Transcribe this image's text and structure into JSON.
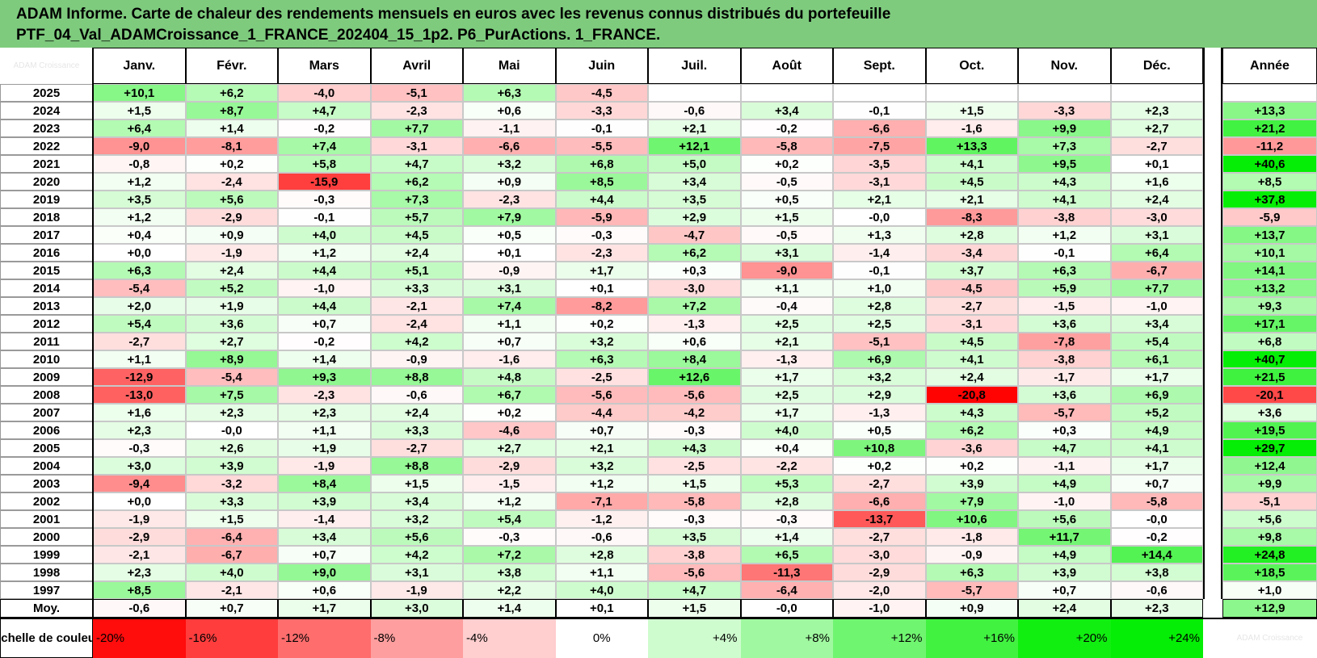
{
  "title_lines": [
    "ADAM Informe. Carte de chaleur des rendements mensuels en euros avec les revenus connus distribués du portefeuille",
    "PTF_04_Val_ADAMCroissance_1_FRANCE_202404_15_1p2. P6_PurActions. 1_FRANCE."
  ],
  "corner_watermark": "ADAM Croissance",
  "year_label": "Année",
  "average_label": "Moy.",
  "legend_label": "Echelle de couleur",
  "legend_ghost": "ADAM Croissance",
  "colors": {
    "title_bg": "#7ecb7e",
    "negative": "#ff0000",
    "positive": "#00ee00",
    "neutral": "#ffffff"
  },
  "chart_data": {
    "type": "heatmap",
    "title": "ADAM Informe. Carte de chaleur des rendements mensuels en euros avec les revenus connus distribués du portefeuille PTF_04_Val_ADAMCroissance_1_FRANCE_202404_15_1p2. P6_PurActions. 1_FRANCE.",
    "columns": [
      "Janv.",
      "Févr.",
      "Mars",
      "Avril",
      "Mai",
      "Juin",
      "Juil.",
      "Août",
      "Sept.",
      "Oct.",
      "Nov.",
      "Déc."
    ],
    "rows": [
      {
        "year": "2025",
        "values": [
          "+10,1",
          "+6,2",
          "-4,0",
          "-5,1",
          "+6,3",
          "-4,5",
          "",
          "",
          "",
          "",
          "",
          ""
        ],
        "annual": ""
      },
      {
        "year": "2024",
        "values": [
          "+1,5",
          "+8,7",
          "+4,7",
          "-2,3",
          "+0,6",
          "-3,3",
          "-0,6",
          "+3,4",
          "-0,1",
          "+1,5",
          "-3,3",
          "+2,3"
        ],
        "annual": "+13,3"
      },
      {
        "year": "2023",
        "values": [
          "+6,4",
          "+1,4",
          "-0,2",
          "+7,7",
          "-1,1",
          "-0,1",
          "+2,1",
          "-0,2",
          "-6,6",
          "-1,6",
          "+9,9",
          "+2,7"
        ],
        "annual": "+21,2"
      },
      {
        "year": "2022",
        "values": [
          "-9,0",
          "-8,1",
          "+7,4",
          "-3,1",
          "-6,6",
          "-5,5",
          "+12,1",
          "-5,8",
          "-7,5",
          "+13,3",
          "+7,3",
          "-2,7"
        ],
        "annual": "-11,2"
      },
      {
        "year": "2021",
        "values": [
          "-0,8",
          "+0,2",
          "+5,8",
          "+4,7",
          "+3,2",
          "+6,8",
          "+5,0",
          "+0,2",
          "-3,5",
          "+4,1",
          "+9,5",
          "+0,1"
        ],
        "annual": "+40,6"
      },
      {
        "year": "2020",
        "values": [
          "+1,2",
          "-2,4",
          "-15,9",
          "+6,2",
          "+0,9",
          "+8,5",
          "+3,4",
          "-0,5",
          "-3,1",
          "+4,5",
          "+4,3",
          "+1,6"
        ],
        "annual": "+8,5"
      },
      {
        "year": "2019",
        "values": [
          "+3,5",
          "+5,6",
          "-0,3",
          "+7,3",
          "-2,3",
          "+4,4",
          "+3,5",
          "+0,5",
          "+2,1",
          "+2,1",
          "+4,1",
          "+2,4"
        ],
        "annual": "+37,8"
      },
      {
        "year": "2018",
        "values": [
          "+1,2",
          "-2,9",
          "-0,1",
          "+5,7",
          "+7,9",
          "-5,9",
          "+2,9",
          "+1,5",
          "-0,0",
          "-8,3",
          "-3,8",
          "-3,0"
        ],
        "annual": "-5,9"
      },
      {
        "year": "2017",
        "values": [
          "+0,4",
          "+0,9",
          "+4,0",
          "+4,5",
          "+0,5",
          "-0,3",
          "-4,7",
          "-0,5",
          "+1,3",
          "+2,8",
          "+1,2",
          "+3,1"
        ],
        "annual": "+13,7"
      },
      {
        "year": "2016",
        "values": [
          "+0,0",
          "-1,9",
          "+1,2",
          "+2,4",
          "+0,1",
          "-2,3",
          "+6,2",
          "+3,1",
          "-1,4",
          "-3,4",
          "-0,1",
          "+6,4"
        ],
        "annual": "+10,1"
      },
      {
        "year": "2015",
        "values": [
          "+6,3",
          "+2,4",
          "+4,4",
          "+5,1",
          "-0,9",
          "+1,7",
          "+0,3",
          "-9,0",
          "-0,1",
          "+3,7",
          "+6,3",
          "-6,7"
        ],
        "annual": "+14,1"
      },
      {
        "year": "2014",
        "values": [
          "-5,4",
          "+5,2",
          "-1,0",
          "+3,3",
          "+3,1",
          "+0,1",
          "-3,0",
          "+1,1",
          "+1,0",
          "-4,5",
          "+5,9",
          "+7,7"
        ],
        "annual": "+13,2"
      },
      {
        "year": "2013",
        "values": [
          "+2,0",
          "+1,9",
          "+4,4",
          "-2,1",
          "+7,4",
          "-8,2",
          "+7,2",
          "-0,4",
          "+2,8",
          "-2,7",
          "-1,5",
          "-1,0"
        ],
        "annual": "+9,3"
      },
      {
        "year": "2012",
        "values": [
          "+5,4",
          "+3,6",
          "+0,7",
          "-2,4",
          "+1,1",
          "+0,2",
          "-1,3",
          "+2,5",
          "+2,5",
          "-3,1",
          "+3,6",
          "+3,4"
        ],
        "annual": "+17,1"
      },
      {
        "year": "2011",
        "values": [
          "-2,7",
          "+2,7",
          "-0,2",
          "+4,2",
          "+0,7",
          "+3,2",
          "+0,6",
          "+2,1",
          "-5,1",
          "+4,5",
          "-7,8",
          "+5,4"
        ],
        "annual": "+6,8"
      },
      {
        "year": "2010",
        "values": [
          "+1,1",
          "+8,9",
          "+1,4",
          "-0,9",
          "-1,6",
          "+6,3",
          "+8,4",
          "-1,3",
          "+6,9",
          "+4,1",
          "-3,8",
          "+6,1"
        ],
        "annual": "+40,7"
      },
      {
        "year": "2009",
        "values": [
          "-12,9",
          "-5,4",
          "+9,3",
          "+8,8",
          "+4,8",
          "-2,5",
          "+12,6",
          "+1,7",
          "+3,2",
          "+2,4",
          "-1,7",
          "+1,7"
        ],
        "annual": "+21,5"
      },
      {
        "year": "2008",
        "values": [
          "-13,0",
          "+7,5",
          "-2,3",
          "-0,6",
          "+6,7",
          "-5,6",
          "-5,6",
          "+2,5",
          "+2,9",
          "-20,8",
          "+3,6",
          "+6,9"
        ],
        "annual": "-20,1"
      },
      {
        "year": "2007",
        "values": [
          "+1,6",
          "+2,3",
          "+2,3",
          "+2,4",
          "+0,2",
          "-4,4",
          "-4,2",
          "+1,7",
          "-1,3",
          "+4,3",
          "-5,7",
          "+5,2"
        ],
        "annual": "+3,6"
      },
      {
        "year": "2006",
        "values": [
          "+2,3",
          "-0,0",
          "+1,1",
          "+3,3",
          "-4,6",
          "+0,7",
          "-0,3",
          "+4,0",
          "+0,5",
          "+6,2",
          "+0,3",
          "+4,9"
        ],
        "annual": "+19,5"
      },
      {
        "year": "2005",
        "values": [
          "-0,3",
          "+2,6",
          "+1,9",
          "-2,7",
          "+2,7",
          "+2,1",
          "+4,3",
          "+0,4",
          "+10,8",
          "-3,6",
          "+4,7",
          "+4,1"
        ],
        "annual": "+29,7"
      },
      {
        "year": "2004",
        "values": [
          "+3,0",
          "+3,9",
          "-1,9",
          "+8,8",
          "-2,9",
          "+3,2",
          "-2,5",
          "-2,2",
          "+0,2",
          "+0,2",
          "-1,1",
          "+1,7"
        ],
        "annual": "+12,4"
      },
      {
        "year": "2003",
        "values": [
          "-9,4",
          "-3,2",
          "+8,4",
          "+1,5",
          "-1,5",
          "+1,2",
          "+1,5",
          "+5,3",
          "-2,7",
          "+3,9",
          "+4,9",
          "+0,7"
        ],
        "annual": "+9,9"
      },
      {
        "year": "2002",
        "values": [
          "+0,0",
          "+3,3",
          "+3,9",
          "+3,4",
          "+1,2",
          "-7,1",
          "-5,8",
          "+2,8",
          "-6,6",
          "+7,9",
          "-1,0",
          "-5,8"
        ],
        "annual": "-5,1"
      },
      {
        "year": "2001",
        "values": [
          "-1,9",
          "+1,5",
          "-1,4",
          "+3,2",
          "+5,4",
          "-1,2",
          "-0,3",
          "-0,3",
          "-13,7",
          "+10,6",
          "+5,6",
          "-0,0"
        ],
        "annual": "+5,6"
      },
      {
        "year": "2000",
        "values": [
          "-2,9",
          "-6,4",
          "+3,4",
          "+5,6",
          "-0,3",
          "-0,6",
          "+3,5",
          "+1,4",
          "-2,7",
          "-1,8",
          "+11,7",
          "-0,2"
        ],
        "annual": "+9,8"
      },
      {
        "year": "1999",
        "values": [
          "-2,1",
          "-6,7",
          "+0,7",
          "+4,2",
          "+7,2",
          "+2,8",
          "-3,8",
          "+6,5",
          "-3,0",
          "-0,9",
          "+4,9",
          "+14,4"
        ],
        "annual": "+24,8"
      },
      {
        "year": "1998",
        "values": [
          "+2,3",
          "+4,0",
          "+9,0",
          "+3,1",
          "+3,8",
          "+1,1",
          "-5,6",
          "-11,3",
          "-2,9",
          "+6,3",
          "+3,9",
          "+3,8"
        ],
        "annual": "+18,5"
      },
      {
        "year": "1997",
        "values": [
          "+8,5",
          "-2,1",
          "+0,6",
          "-1,9",
          "+2,2",
          "+4,0",
          "+4,7",
          "-6,4",
          "-2,0",
          "-5,7",
          "+0,7",
          "-0,6"
        ],
        "annual": "+1,0"
      }
    ],
    "average": {
      "values": [
        "-0,6",
        "+0,7",
        "+1,7",
        "+3,0",
        "+1,4",
        "+0,1",
        "+1,5",
        "-0,0",
        "-1,0",
        "+0,9",
        "+2,4",
        "+2,3"
      ],
      "annual": "+12,9"
    },
    "scale": [
      "-20%",
      "-16%",
      "-12%",
      "-8%",
      "-4%",
      "0%",
      "+4%",
      "+8%",
      "+12%",
      "+16%",
      "+20%",
      "+24%"
    ]
  }
}
